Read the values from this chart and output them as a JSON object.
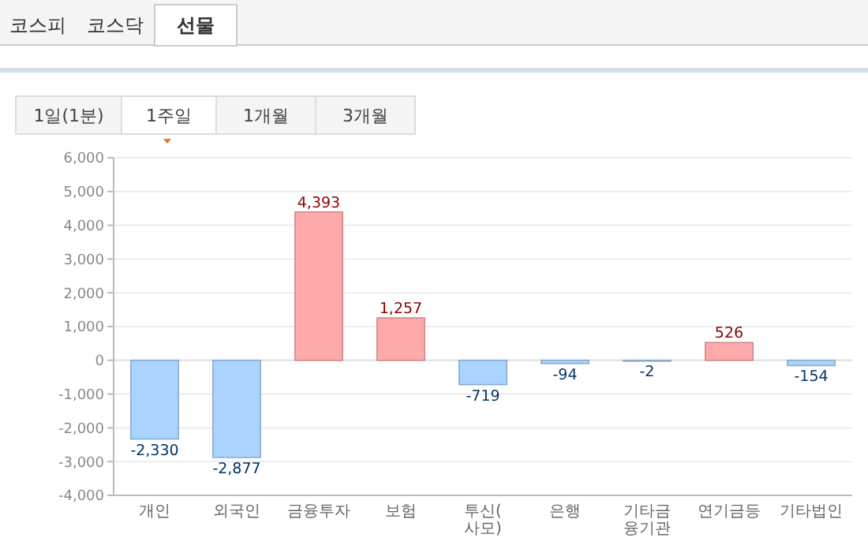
{
  "chart_data": {
    "type": "bar",
    "annotations": [
      "코스피",
      "코스닥",
      "선물",
      "1일(1분)",
      "1주일",
      "1개월",
      "3개월"
    ],
    "categories": [
      "개인",
      "외국인",
      "금융투자",
      "보험",
      "투신(사모)",
      "은행",
      "기타금융기관",
      "연기금등",
      "기타법인"
    ],
    "values": [
      -2330,
      -2877,
      4393,
      1257,
      -719,
      -94,
      -2,
      526,
      -154
    ],
    "colors": [
      "#aad4ff",
      "#aad4ff",
      "#ffaaaa",
      "#ffaaaa",
      "#aad4ff",
      "#aad4ff",
      "#aad4ff",
      "#ffaaaa",
      "#aad4ff"
    ],
    "ylim": [
      -4000,
      6000
    ],
    "yticks": [
      {
        "value": -4000,
        "label": "-4,000"
      },
      {
        "value": -3000,
        "label": "-3,000"
      },
      {
        "value": -2000,
        "label": "-2,000"
      },
      {
        "value": -1000,
        "label": "-1,000"
      },
      0,
      {
        "value": 1000,
        "label": "1,000"
      },
      {
        "value": 2000,
        "label": "2,000"
      },
      {
        "value": 3000,
        "label": "3,000"
      },
      {
        "value": 4000,
        "label": "4,000"
      },
      {
        "value": 5000,
        "label": "5,000"
      },
      {
        "value": 6000,
        "label": "6,000"
      }
    ],
    "value_labels": [
      "-2,330",
      "-2,877",
      "4,393",
      "1,257",
      "-719",
      "-94",
      "-2",
      "526",
      "-154"
    ],
    "grid": "y"
  }
}
